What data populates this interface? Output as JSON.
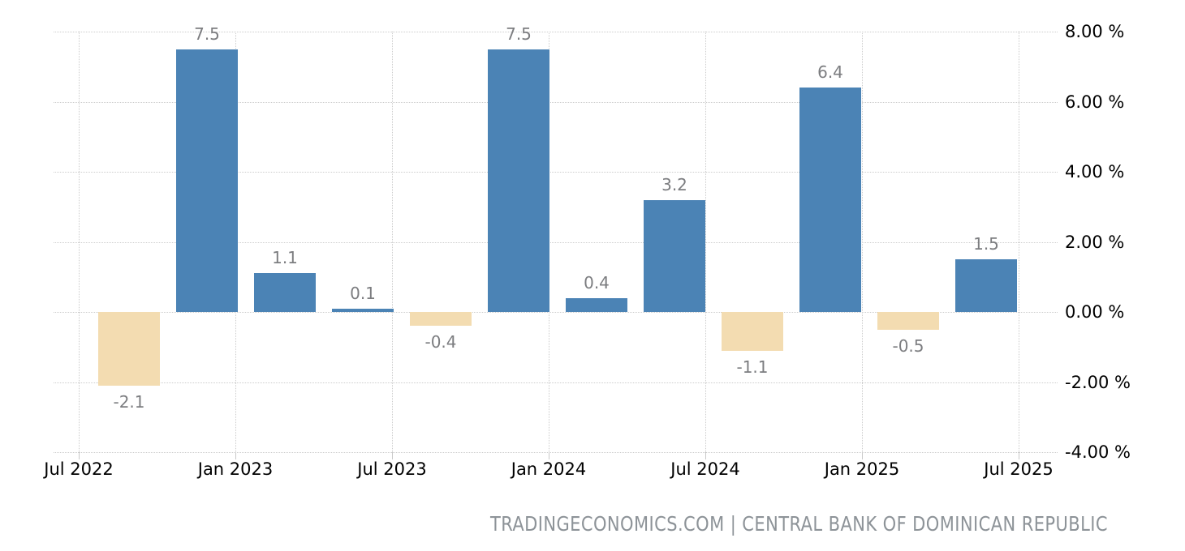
{
  "chart_data": {
    "type": "bar",
    "title": "",
    "bars": [
      {
        "value": -2.1,
        "label": "-2.1"
      },
      {
        "value": 7.5,
        "label": "7.5"
      },
      {
        "value": 1.1,
        "label": "1.1"
      },
      {
        "value": 0.1,
        "label": "0.1"
      },
      {
        "value": -0.4,
        "label": "-0.4"
      },
      {
        "value": 7.5,
        "label": "7.5"
      },
      {
        "value": 0.4,
        "label": "0.4"
      },
      {
        "value": 3.2,
        "label": "3.2"
      },
      {
        "value": -1.1,
        "label": "-1.1"
      },
      {
        "value": 6.4,
        "label": "6.4"
      },
      {
        "value": -0.5,
        "label": "-0.5"
      },
      {
        "value": 1.5,
        "label": "1.5"
      }
    ],
    "x_tick_labels": [
      "Jul 2022",
      "Jan 2023",
      "Jul 2023",
      "Jan 2024",
      "Jul 2024",
      "Jan 2025",
      "Jul 2025"
    ],
    "y_ticks": [
      {
        "value": 8,
        "label": "8.00 %"
      },
      {
        "value": 6,
        "label": "6.00 %"
      },
      {
        "value": 4,
        "label": "4.00 %"
      },
      {
        "value": 2,
        "label": "2.00 %"
      },
      {
        "value": 0,
        "label": "0.00 %"
      },
      {
        "value": -2,
        "label": "-2.00 %"
      },
      {
        "value": -4,
        "label": "-4.00 %"
      }
    ],
    "ylim": [
      -4,
      8
    ],
    "grid": "dotted",
    "legend": "none",
    "colors": {
      "positive": "#4b83b5",
      "negative": "#f3dcb1",
      "value_label": "#7c7d80",
      "axis_label": "#000000",
      "gridline": "#cccccc"
    }
  },
  "attribution": {
    "text": "TRADINGECONOMICS.COM | CENTRAL BANK OF DOMINICAN REPUBLIC"
  }
}
